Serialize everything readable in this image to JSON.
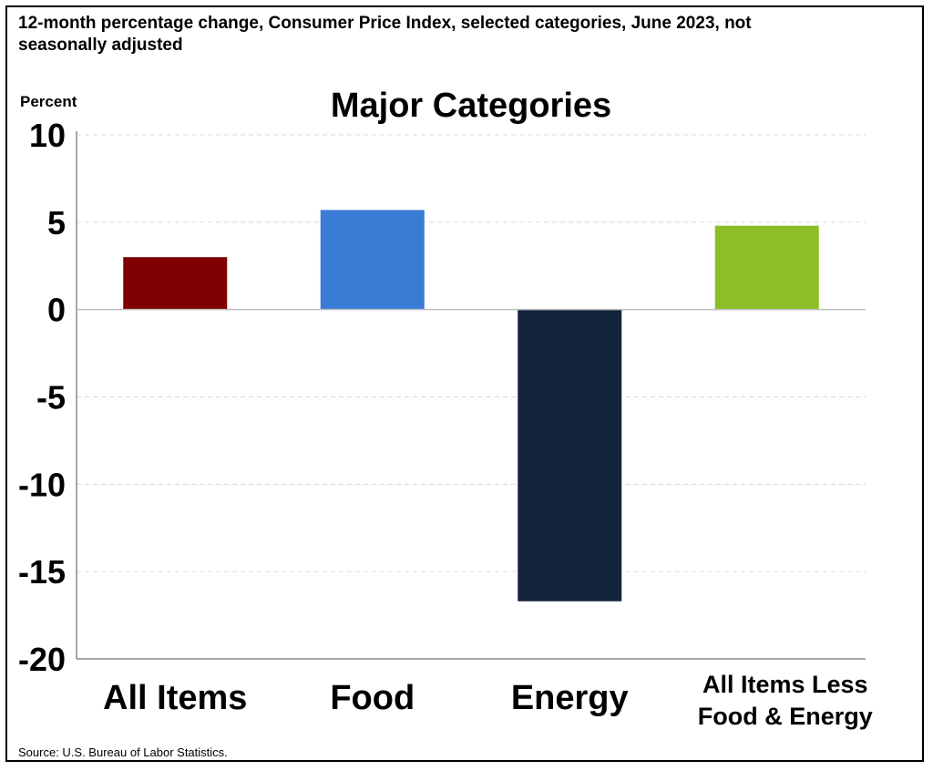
{
  "header": {
    "title": "12-month percentage change, Consumer Price Index, selected categories, June 2023, not seasonally adjusted"
  },
  "source": {
    "text": "Source: U.S. Bureau of Labor Statistics."
  },
  "chart_data": {
    "type": "bar",
    "title": "Major Categories",
    "ylabel": "Percent",
    "xlabel": "",
    "categories": [
      [
        "All Items"
      ],
      [
        "Food"
      ],
      [
        "Energy"
      ],
      [
        "All Items Less",
        "Food & Energy"
      ]
    ],
    "values": [
      3.0,
      5.7,
      -16.7,
      4.8
    ],
    "colors": [
      "#7f0000",
      "#3a7bd5",
      "#13233b",
      "#8cbf26"
    ],
    "ylim": [
      -20,
      10
    ],
    "yticks": [
      10,
      5,
      0,
      -5,
      -10,
      -15,
      -20
    ],
    "grid": true
  }
}
